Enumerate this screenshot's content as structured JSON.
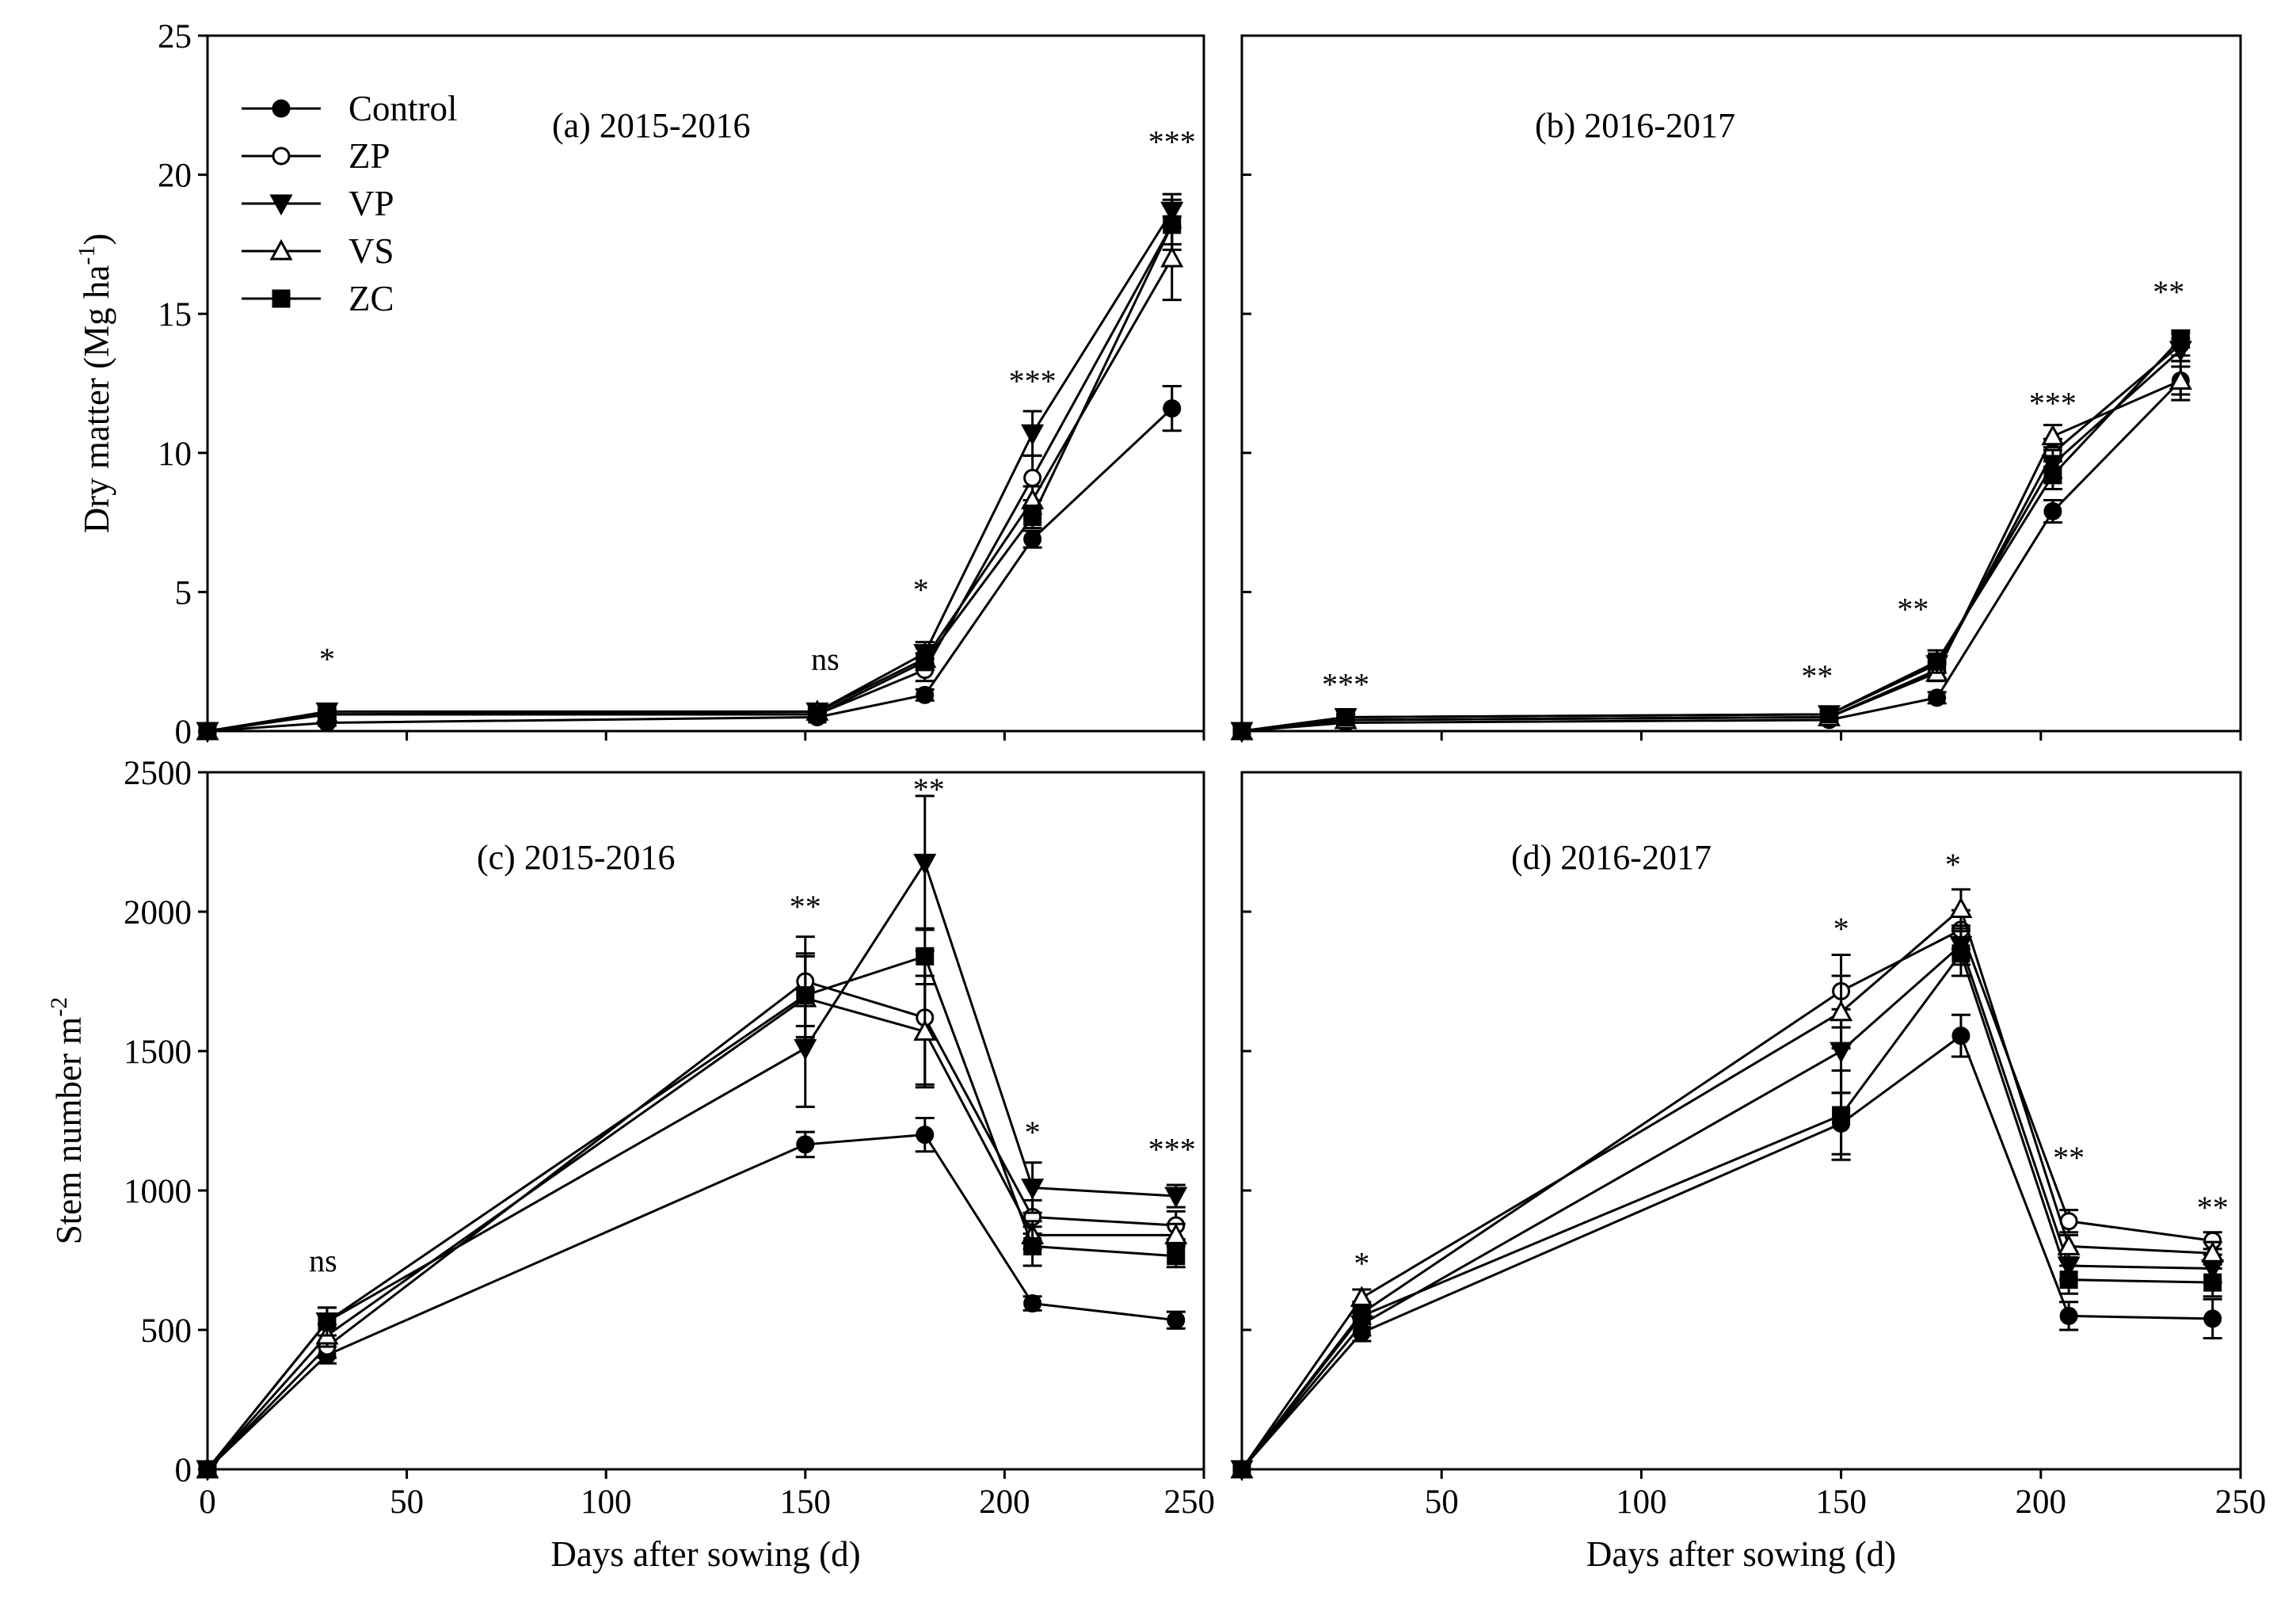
{
  "figure": {
    "legend": [
      "Control",
      "ZP",
      "VP",
      "VS",
      "ZC"
    ]
  },
  "chart_data": [
    {
      "id": "a",
      "type": "line",
      "label": "(a)  2015-2016",
      "ylabel": "Dry matter (Mg ha-1)",
      "ylabel_main": "Dry matter (Mg ha",
      "ylabel_sup": "-1",
      "ylabel_end": ")",
      "xlabel": "",
      "xlim": [
        0,
        250
      ],
      "ylim": [
        0,
        25
      ],
      "xticks": [
        0,
        50,
        100,
        150,
        200,
        250
      ],
      "xtick_labels": [
        "",
        "",
        "",
        "",
        "",
        ""
      ],
      "yticks": [
        0,
        5,
        10,
        15,
        20,
        25
      ],
      "ytick_labels": [
        "0",
        "5",
        "10",
        "15",
        "20",
        "25"
      ],
      "x": [
        0,
        30,
        153,
        180,
        207,
        242
      ],
      "series": [
        {
          "name": "Control",
          "values": [
            0,
            0.3,
            0.5,
            1.3,
            6.9,
            11.6
          ],
          "errors": [
            0,
            0.1,
            0.1,
            0.2,
            0.3,
            0.8
          ]
        },
        {
          "name": "ZP",
          "values": [
            0,
            0.6,
            0.6,
            2.2,
            9.1,
            18.2
          ],
          "errors": [
            0,
            0.1,
            0.1,
            0.4,
            0.8,
            0.9
          ]
        },
        {
          "name": "VP",
          "values": [
            0,
            0.7,
            0.7,
            2.8,
            10.7,
            18.7
          ],
          "errors": [
            0,
            0.1,
            0.1,
            0.4,
            0.8,
            0.6
          ]
        },
        {
          "name": "VS",
          "values": [
            0,
            0.6,
            0.7,
            2.6,
            8.3,
            17.0
          ],
          "errors": [
            0,
            0.1,
            0.1,
            0.4,
            0.5,
            1.5
          ]
        },
        {
          "name": "ZC",
          "values": [
            0,
            0.6,
            0.6,
            2.5,
            7.7,
            18.2
          ],
          "errors": [
            0,
            0.1,
            0.1,
            0.3,
            0.4,
            0.7
          ]
        }
      ],
      "significance": [
        {
          "x": 30,
          "y": 2.2,
          "text": "*"
        },
        {
          "x": 155,
          "y": 2.2,
          "text": "ns"
        },
        {
          "x": 179,
          "y": 4.7,
          "text": "*"
        },
        {
          "x": 207,
          "y": 12.2,
          "text": "***"
        },
        {
          "x": 242,
          "y": 20.8,
          "text": "***"
        }
      ]
    },
    {
      "id": "b",
      "type": "line",
      "label": "(b)  2016-2017",
      "xlabel": "",
      "ylabel": "",
      "xlim": [
        0,
        250
      ],
      "ylim": [
        0,
        25
      ],
      "xticks": [
        0,
        50,
        100,
        150,
        200,
        250
      ],
      "xtick_labels": [
        "",
        "",
        "",
        "",
        "",
        ""
      ],
      "yticks": [
        0,
        5,
        10,
        15,
        20,
        25
      ],
      "ytick_labels": [
        "",
        "",
        "",
        "",
        "",
        ""
      ],
      "x": [
        0,
        26,
        147,
        174,
        203,
        235
      ],
      "series": [
        {
          "name": "Control",
          "values": [
            0,
            0.3,
            0.4,
            1.2,
            7.9,
            12.6
          ],
          "errors": [
            0,
            0.1,
            0.1,
            0.2,
            0.4,
            0.7
          ]
        },
        {
          "name": "ZP",
          "values": [
            0,
            0.4,
            0.5,
            2.2,
            10.0,
            13.9
          ],
          "errors": [
            0,
            0.1,
            0.1,
            0.3,
            0.5,
            0.4
          ]
        },
        {
          "name": "VP",
          "values": [
            0,
            0.5,
            0.6,
            2.4,
            9.6,
            13.7
          ],
          "errors": [
            0,
            0.1,
            0.1,
            0.3,
            0.5,
            0.4
          ]
        },
        {
          "name": "VS",
          "values": [
            0,
            0.4,
            0.5,
            2.1,
            10.6,
            12.6
          ],
          "errors": [
            0,
            0.1,
            0.1,
            0.3,
            0.4,
            0.5
          ]
        },
        {
          "name": "ZC",
          "values": [
            0,
            0.5,
            0.6,
            2.5,
            9.2,
            14.1
          ],
          "errors": [
            0,
            0.1,
            0.1,
            0.4,
            0.5,
            0.3
          ]
        }
      ],
      "significance": [
        {
          "x": 26,
          "y": 1.3,
          "text": "***"
        },
        {
          "x": 144,
          "y": 1.6,
          "text": "**"
        },
        {
          "x": 168,
          "y": 4.0,
          "text": "**"
        },
        {
          "x": 203,
          "y": 11.4,
          "text": "***"
        },
        {
          "x": 232,
          "y": 15.4,
          "text": "**"
        }
      ]
    },
    {
      "id": "c",
      "type": "line",
      "label": "(c)  2015-2016",
      "ylabel": "Stem number m-2",
      "ylabel_main": "Stem number m",
      "ylabel_sup": "-2",
      "ylabel_end": "",
      "xlabel": "Days after sowing (d)",
      "xlim": [
        0,
        250
      ],
      "ylim": [
        0,
        2500
      ],
      "xticks": [
        0,
        50,
        100,
        150,
        200,
        250
      ],
      "xtick_labels": [
        "0",
        "50",
        "100",
        "150",
        "200",
        "250"
      ],
      "yticks": [
        0,
        500,
        1000,
        1500,
        2000,
        2500
      ],
      "ytick_labels": [
        "0",
        "500",
        "1000",
        "1500",
        "2000",
        "2500"
      ],
      "x": [
        0,
        30,
        150,
        180,
        207,
        243
      ],
      "series": [
        {
          "name": "Control",
          "values": [
            0,
            410,
            1165,
            1200,
            595,
            535
          ],
          "errors": [
            0,
            30,
            45,
            60,
            25,
            30
          ]
        },
        {
          "name": "ZP",
          "values": [
            0,
            440,
            1750,
            1620,
            905,
            875
          ],
          "errors": [
            0,
            40,
            160,
            240,
            60,
            50
          ]
        },
        {
          "name": "VP",
          "values": [
            0,
            530,
            1510,
            2175,
            1010,
            980
          ],
          "errors": [
            0,
            50,
            210,
            240,
            90,
            40
          ]
        },
        {
          "name": "VS",
          "values": [
            0,
            480,
            1690,
            1570,
            840,
            840
          ],
          "errors": [
            0,
            40,
            150,
            200,
            50,
            40
          ]
        },
        {
          "name": "ZC",
          "values": [
            0,
            530,
            1700,
            1840,
            800,
            765
          ],
          "errors": [
            0,
            50,
            150,
            100,
            70,
            40
          ]
        }
      ],
      "significance": [
        {
          "x": 29,
          "y": 710,
          "text": "ns"
        },
        {
          "x": 150,
          "y": 1980,
          "text": "**"
        },
        {
          "x": 181,
          "y": 2400,
          "text": "**"
        },
        {
          "x": 207,
          "y": 1170,
          "text": "*"
        },
        {
          "x": 242,
          "y": 1110,
          "text": "***"
        }
      ]
    },
    {
      "id": "d",
      "type": "line",
      "label": "(d)  2016-2017",
      "ylabel": "",
      "xlabel": "Days after sowing (d)",
      "xlim": [
        0,
        250
      ],
      "ylim": [
        0,
        2500
      ],
      "xticks": [
        0,
        50,
        100,
        150,
        200,
        250
      ],
      "xtick_labels": [
        "",
        "50",
        "100",
        "150",
        "200",
        "250"
      ],
      "yticks": [
        0,
        500,
        1000,
        1500,
        2000,
        2500
      ],
      "ytick_labels": [
        "",
        "",
        "",
        "",
        "",
        ""
      ],
      "x": [
        0,
        30,
        150,
        180,
        207,
        243
      ],
      "series": [
        {
          "name": "Control",
          "values": [
            0,
            490,
            1240,
            1555,
            550,
            540
          ],
          "errors": [
            0,
            30,
            110,
            75,
            50,
            70
          ]
        },
        {
          "name": "ZP",
          "values": [
            0,
            560,
            1715,
            1935,
            890,
            820
          ],
          "errors": [
            0,
            40,
            130,
            70,
            40,
            30
          ]
        },
        {
          "name": "VP",
          "values": [
            0,
            520,
            1500,
            1880,
            730,
            720
          ],
          "errors": [
            0,
            40,
            150,
            70,
            50,
            50
          ]
        },
        {
          "name": "VS",
          "values": [
            0,
            615,
            1640,
            2010,
            800,
            775
          ],
          "errors": [
            0,
            30,
            130,
            70,
            40,
            40
          ]
        },
        {
          "name": "ZC",
          "values": [
            0,
            550,
            1270,
            1850,
            680,
            670
          ],
          "errors": [
            0,
            40,
            160,
            80,
            50,
            50
          ]
        }
      ],
      "significance": [
        {
          "x": 30,
          "y": 700,
          "text": "*"
        },
        {
          "x": 150,
          "y": 1900,
          "text": "*"
        },
        {
          "x": 178,
          "y": 2130,
          "text": "*"
        },
        {
          "x": 207,
          "y": 1080,
          "text": "**"
        },
        {
          "x": 243,
          "y": 900,
          "text": "**"
        }
      ]
    }
  ]
}
